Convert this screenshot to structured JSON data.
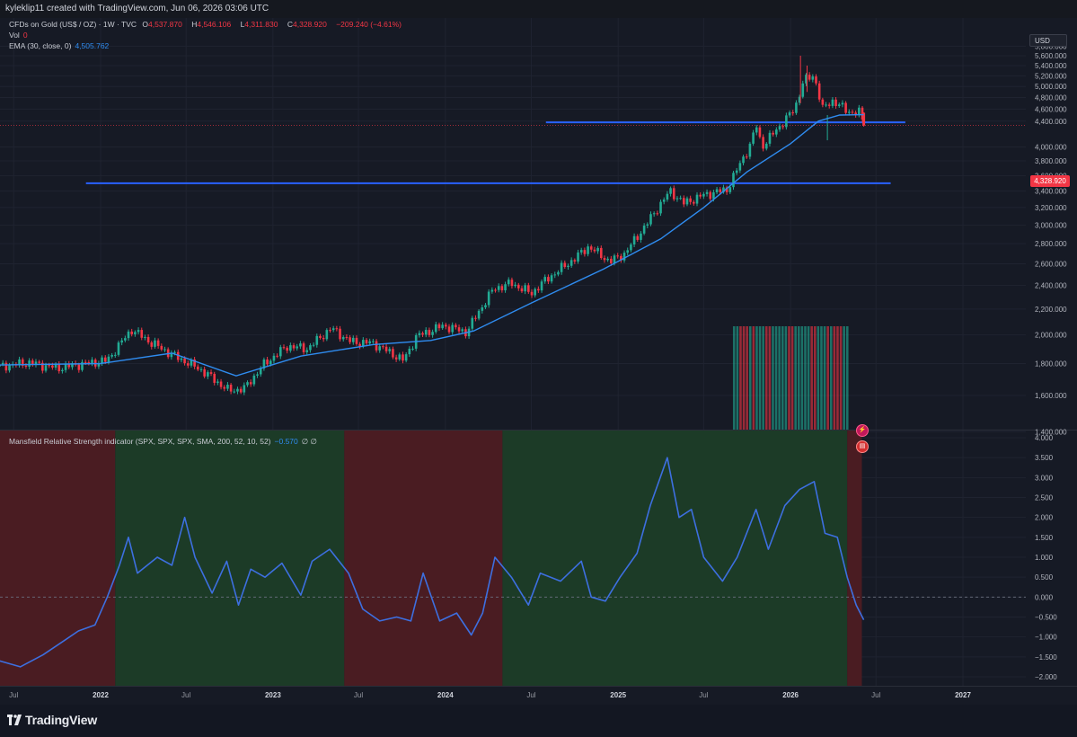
{
  "header": {
    "credit": "kyleklip11 created with TradingView.com, Jun 06, 2026 03:06 UTC"
  },
  "legend": {
    "symbol": "CFDs on Gold (US$ / OZ) · 1W · TVC",
    "open_label": "O",
    "open": "4,537.870",
    "high_label": "H",
    "high": "4,546.106",
    "low_label": "L",
    "low": "4,311.830",
    "close_label": "C",
    "close": "4,328.920",
    "change": "−209.240 (−4.61%)",
    "vol_label": "Vol",
    "vol": "0",
    "ema_label": "EMA (30, close, 0)",
    "ema": "4,505.762",
    "indicator_label": "Mansfield Relative Strength indicator (SPX, SPX, SPX, SMA, 200, 52, 10, 52)",
    "indicator_value": "−0.570",
    "indicator_flags": "∅ ∅"
  },
  "price_axis": {
    "currency": "USD",
    "current_price": "4,328.920",
    "ticks": [
      "5,800.000",
      "5,600.000",
      "5,400.000",
      "5,200.000",
      "5,000.000",
      "4,800.000",
      "4,600.000",
      "4,400.000",
      "4,000.000",
      "3,800.000",
      "3,600.000",
      "3,400.000",
      "3,200.000",
      "3,000.000",
      "2,800.000",
      "2,600.000",
      "2,400.000",
      "2,200.000",
      "2,000.000",
      "1,800.000",
      "1,600.000",
      "1,400.000"
    ]
  },
  "indicator_axis": {
    "ticks": [
      "4.000",
      "3.500",
      "3.000",
      "2.500",
      "2.000",
      "1.500",
      "1.000",
      "0.500",
      "0.000",
      "−0.500",
      "−1.000",
      "−1.500",
      "−2.000"
    ]
  },
  "time_axis": {
    "labels": [
      "Jul",
      "2022",
      "Jul",
      "2023",
      "Jul",
      "2024",
      "Jul",
      "2025",
      "Jul",
      "2026",
      "Jul",
      "2027"
    ]
  },
  "footer": {
    "brand": "TradingView"
  },
  "colors": {
    "up": "#22ab94",
    "down": "#f23645",
    "ema": "#2f8cf0",
    "hline": "#2962ff",
    "rs_line": "#3d6fe0",
    "rs_bg_pos": "#1c3b27",
    "rs_bg_neg": "#4a1c22"
  },
  "chart_data": [
    {
      "type": "candlestick",
      "title": "CFDs on Gold (US$ / OZ) · 1W · TVC",
      "interval": "1W",
      "x_range": [
        "2021-06",
        "2027-03"
      ],
      "y_scale": "log",
      "ylim": [
        1300,
        5900
      ],
      "close_path": [
        [
          "2021-06-01",
          1780
        ],
        [
          "2021-08-01",
          1805
        ],
        [
          "2021-10-01",
          1770
        ],
        [
          "2021-12-01",
          1800
        ],
        [
          "2022-01-15",
          1820
        ],
        [
          "2022-03-08",
          2040
        ],
        [
          "2022-04-15",
          1950
        ],
        [
          "2022-06-01",
          1860
        ],
        [
          "2022-08-01",
          1760
        ],
        [
          "2022-09-28",
          1630
        ],
        [
          "2022-11-01",
          1640
        ],
        [
          "2022-12-15",
          1800
        ],
        [
          "2023-02-01",
          1920
        ],
        [
          "2023-03-15",
          1900
        ],
        [
          "2023-05-04",
          2050
        ],
        [
          "2023-06-15",
          1950
        ],
        [
          "2023-08-01",
          1940
        ],
        [
          "2023-10-05",
          1820
        ],
        [
          "2023-11-01",
          1990
        ],
        [
          "2023-12-28",
          2070
        ],
        [
          "2024-02-15",
          2020
        ],
        [
          "2024-04-12",
          2370
        ],
        [
          "2024-05-20",
          2420
        ],
        [
          "2024-07-01",
          2330
        ],
        [
          "2024-08-01",
          2450
        ],
        [
          "2024-10-01",
          2650
        ],
        [
          "2024-10-30",
          2770
        ],
        [
          "2024-12-15",
          2620
        ],
        [
          "2025-01-15",
          2700
        ],
        [
          "2025-03-01",
          3000
        ],
        [
          "2025-04-21",
          3400
        ],
        [
          "2025-05-20",
          3250
        ],
        [
          "2025-07-01",
          3350
        ],
        [
          "2025-08-20",
          3420
        ],
        [
          "2025-10-10",
          4060
        ],
        [
          "2025-10-20",
          4350
        ],
        [
          "2025-11-01",
          4000
        ],
        [
          "2025-12-01",
          4250
        ],
        [
          "2026-01-10",
          4600
        ],
        [
          "2026-01-28",
          5100
        ],
        [
          "2026-02-20",
          5200
        ],
        [
          "2026-03-10",
          4600
        ],
        [
          "2026-04-01",
          4750
        ],
        [
          "2026-05-01",
          4560
        ],
        [
          "2026-05-29",
          4538
        ],
        [
          "2026-06-05",
          4329
        ]
      ],
      "last_candle": {
        "open": 4537.87,
        "high": 4546.106,
        "low": 4311.83,
        "close": 4328.92,
        "change": -209.24,
        "change_pct": -4.61
      },
      "notable_highs": [
        5600,
        5400
      ],
      "notable_low": 4100,
      "ema": {
        "name": "EMA (30, close, 0)",
        "last": 4505.762,
        "path": [
          [
            "2021-06-01",
            1790
          ],
          [
            "2022-01-01",
            1800
          ],
          [
            "2022-06-01",
            1870
          ],
          [
            "2022-10-15",
            1720
          ],
          [
            "2023-03-01",
            1850
          ],
          [
            "2023-08-01",
            1930
          ],
          [
            "2023-12-01",
            1960
          ],
          [
            "2024-03-01",
            2030
          ],
          [
            "2024-07-01",
            2250
          ],
          [
            "2024-12-01",
            2550
          ],
          [
            "2025-04-01",
            2850
          ],
          [
            "2025-07-01",
            3200
          ],
          [
            "2025-10-01",
            3650
          ],
          [
            "2026-01-01",
            4050
          ],
          [
            "2026-03-01",
            4400
          ],
          [
            "2026-04-15",
            4500
          ],
          [
            "2026-06-05",
            4506
          ]
        ]
      },
      "horizontal_lines": [
        {
          "price": 4380,
          "from": "2024-08",
          "to": "2026-09"
        },
        {
          "price": 3500,
          "from": "2021-12",
          "to": "2026-08"
        }
      ],
      "volume_profile": {
        "from": "2025-09",
        "to": "2026-05",
        "vol": 0
      }
    },
    {
      "type": "line",
      "title": "Mansfield Relative Strength indicator (SPX, SPX, SPX, SMA, 200, 52, 10, 52)",
      "ylim": [
        -2.2,
        4.2
      ],
      "zero_line": 0,
      "last_value": -0.57,
      "series": [
        {
          "values": [
            [
              "2021-06-01",
              -1.6
            ],
            [
              "2021-07-15",
              -1.75
            ],
            [
              "2021-09-01",
              -1.45
            ],
            [
              "2021-10-15",
              -1.1
            ],
            [
              "2021-11-15",
              -0.85
            ],
            [
              "2021-12-20",
              -0.7
            ],
            [
              "2022-01-15",
              0.0
            ],
            [
              "2022-02-10",
              0.8
            ],
            [
              "2022-03-01",
              1.5
            ],
            [
              "2022-03-20",
              0.6
            ],
            [
              "2022-05-01",
              1.0
            ],
            [
              "2022-06-01",
              0.8
            ],
            [
              "2022-06-28",
              2.0
            ],
            [
              "2022-07-20",
              1.0
            ],
            [
              "2022-08-25",
              0.1
            ],
            [
              "2022-09-25",
              0.9
            ],
            [
              "2022-10-20",
              -0.2
            ],
            [
              "2022-11-15",
              0.7
            ],
            [
              "2022-12-15",
              0.5
            ],
            [
              "2023-01-20",
              0.85
            ],
            [
              "2023-03-01",
              0.05
            ],
            [
              "2023-03-25",
              0.9
            ],
            [
              "2023-05-01",
              1.2
            ],
            [
              "2023-06-10",
              0.6
            ],
            [
              "2023-07-10",
              -0.3
            ],
            [
              "2023-08-15",
              -0.6
            ],
            [
              "2023-09-20",
              -0.5
            ],
            [
              "2023-10-20",
              -0.6
            ],
            [
              "2023-11-15",
              0.6
            ],
            [
              "2023-12-20",
              -0.6
            ],
            [
              "2024-01-25",
              -0.4
            ],
            [
              "2024-02-25",
              -0.95
            ],
            [
              "2024-03-20",
              -0.4
            ],
            [
              "2024-04-15",
              1.0
            ],
            [
              "2024-05-20",
              0.5
            ],
            [
              "2024-06-25",
              -0.2
            ],
            [
              "2024-07-20",
              0.6
            ],
            [
              "2024-09-01",
              0.4
            ],
            [
              "2024-10-15",
              0.9
            ],
            [
              "2024-11-05",
              0.0
            ],
            [
              "2024-12-05",
              -0.1
            ],
            [
              "2025-01-05",
              0.5
            ],
            [
              "2025-02-10",
              1.1
            ],
            [
              "2025-03-10",
              2.3
            ],
            [
              "2025-04-15",
              3.5
            ],
            [
              "2025-05-10",
              2.0
            ],
            [
              "2025-06-05",
              2.2
            ],
            [
              "2025-07-01",
              1.0
            ],
            [
              "2025-08-10",
              0.4
            ],
            [
              "2025-09-10",
              1.0
            ],
            [
              "2025-10-20",
              2.2
            ],
            [
              "2025-11-15",
              1.2
            ],
            [
              "2025-12-20",
              2.3
            ],
            [
              "2026-01-20",
              2.7
            ],
            [
              "2026-02-20",
              2.9
            ],
            [
              "2026-03-15",
              1.6
            ],
            [
              "2026-04-10",
              1.5
            ],
            [
              "2026-05-01",
              0.5
            ],
            [
              "2026-05-20",
              -0.2
            ],
            [
              "2026-06-05",
              -0.57
            ]
          ]
        }
      ],
      "background_regimes": [
        {
          "from": "2021-06",
          "to": "2022-02",
          "state": "negative"
        },
        {
          "from": "2022-02",
          "to": "2023-06",
          "state": "positive"
        },
        {
          "from": "2023-06",
          "to": "2024-05",
          "state": "negative"
        },
        {
          "from": "2024-05",
          "to": "2026-05",
          "state": "positive"
        },
        {
          "from": "2026-05",
          "to": "2026-06",
          "state": "negative"
        }
      ]
    }
  ]
}
